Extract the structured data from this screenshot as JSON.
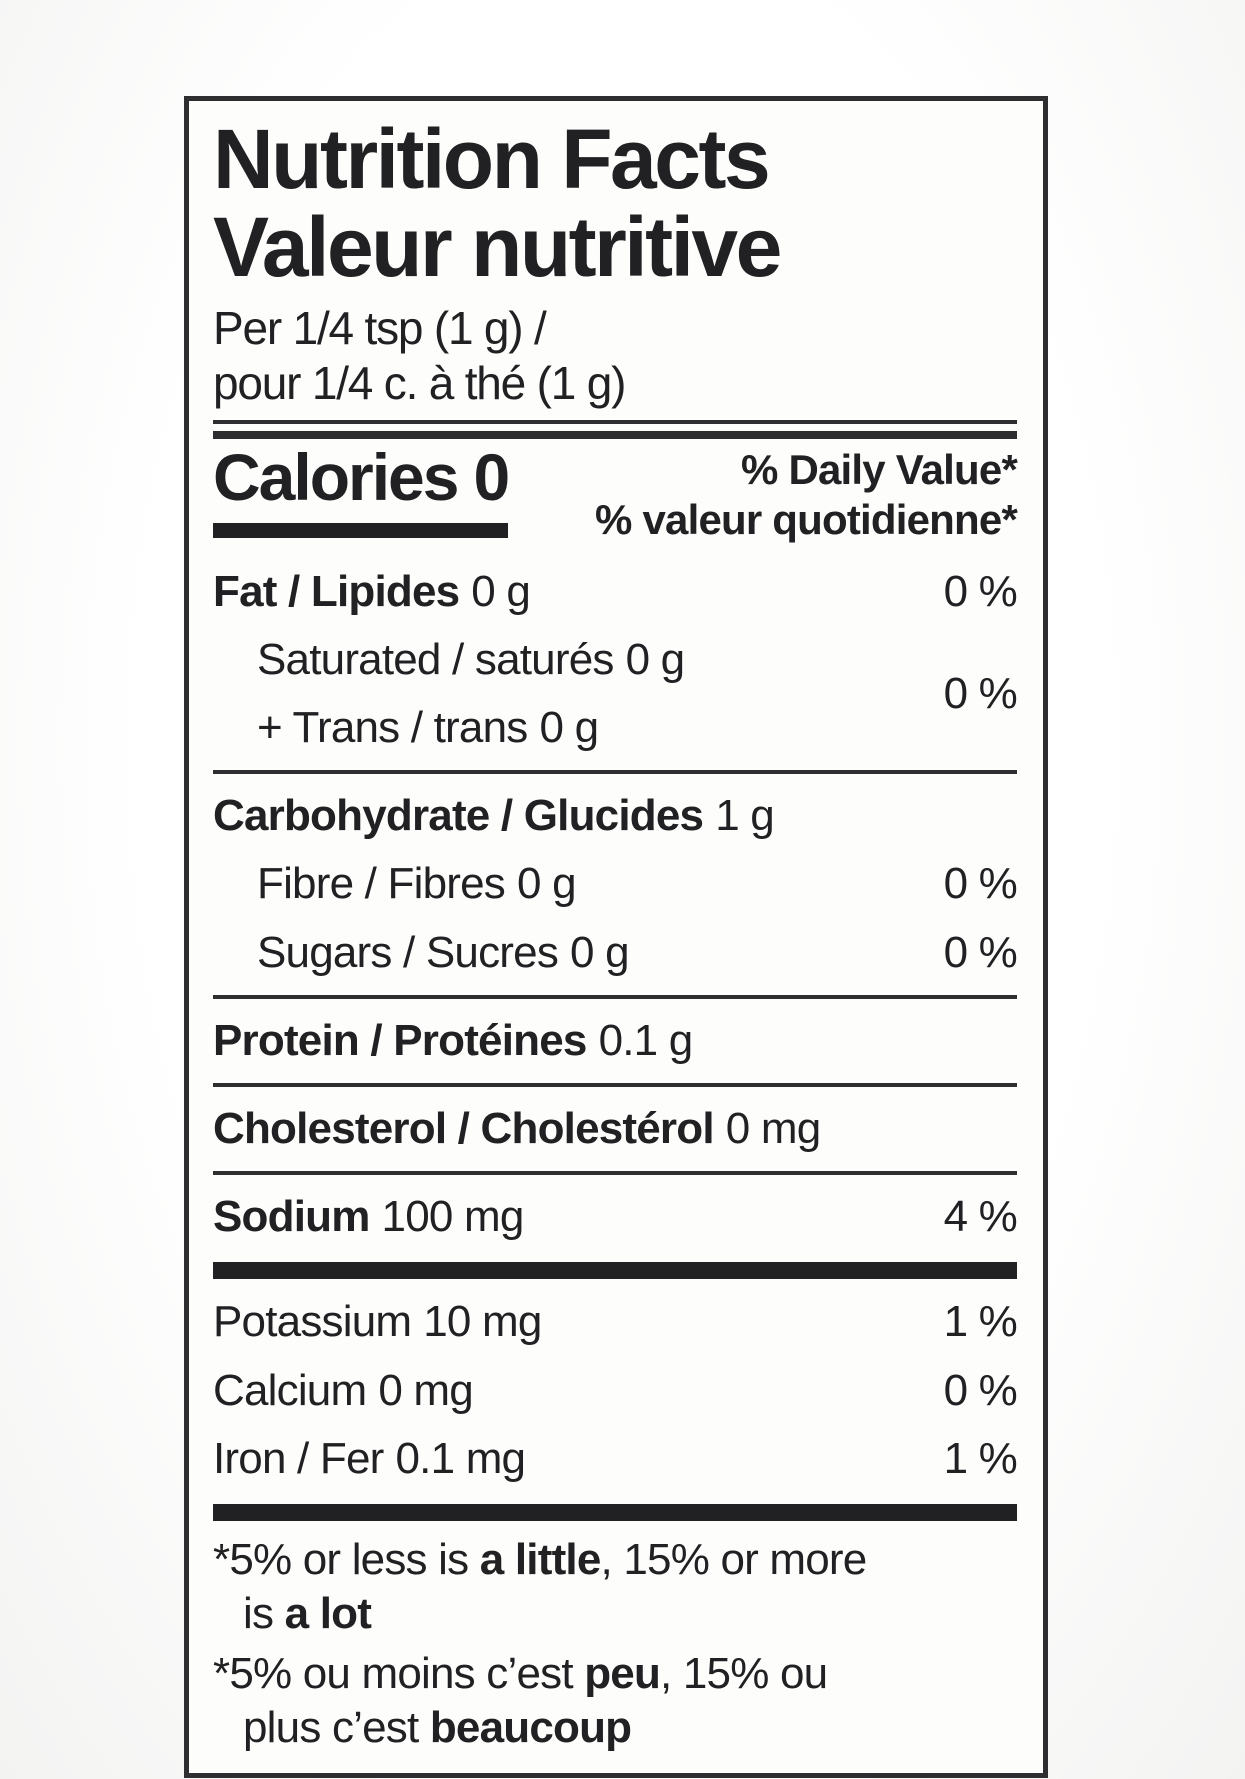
{
  "label": {
    "title_en": "Nutrition Facts",
    "title_fr": "Valeur nutritive",
    "serving_line1": "Per 1/4 tsp (1 g) /",
    "serving_line2": "pour 1/4 c. à thé (1 g)",
    "calories_label": "Calories",
    "calories_value": "0",
    "daily_value_en": "% Daily Value*",
    "daily_value_fr": "% valeur quotidienne*",
    "rows": [
      {
        "type": "row",
        "key": "fat",
        "name": "Fat / Lipides",
        "bold": true,
        "amount": "0 g",
        "dv": "0 %"
      },
      {
        "type": "group",
        "key": "saturated-trans",
        "indent": true,
        "dv": "0 %",
        "lines": [
          {
            "name": "Saturated / saturés",
            "amount": "0 g"
          },
          {
            "name": "+ Trans / trans",
            "amount": "0 g"
          }
        ]
      },
      {
        "type": "rule"
      },
      {
        "type": "row",
        "key": "carbohydrate",
        "name": "Carbohydrate / Glucides",
        "bold": true,
        "amount": "1 g"
      },
      {
        "type": "row",
        "key": "fibre",
        "name": "Fibre / Fibres",
        "indent": true,
        "amount": "0 g",
        "dv": "0 %"
      },
      {
        "type": "row",
        "key": "sugars",
        "name": "Sugars / Sucres",
        "indent": true,
        "amount": "0 g",
        "dv": "0 %"
      },
      {
        "type": "rule"
      },
      {
        "type": "row",
        "key": "protein",
        "name": "Protein / Protéines",
        "bold": true,
        "amount": "0.1 g"
      },
      {
        "type": "rule"
      },
      {
        "type": "row",
        "key": "cholesterol",
        "name": "Cholesterol / Cholestérol",
        "bold": true,
        "amount": "0 mg"
      },
      {
        "type": "rule"
      },
      {
        "type": "row",
        "key": "sodium",
        "name": "Sodium",
        "bold": true,
        "amount": "100 mg",
        "dv": "4 %"
      },
      {
        "type": "bar"
      },
      {
        "type": "row",
        "key": "potassium",
        "name": "Potassium",
        "amount": "10 mg",
        "dv": "1 %"
      },
      {
        "type": "row",
        "key": "calcium",
        "name": "Calcium",
        "amount": "0 mg",
        "dv": "0 %"
      },
      {
        "type": "row",
        "key": "iron",
        "name": "Iron / Fer",
        "amount": "0.1 mg",
        "dv": "1 %"
      },
      {
        "type": "bar"
      }
    ],
    "footnotes": [
      {
        "lang": "en",
        "lines": [
          [
            {
              "t": "*5% or less is "
            },
            {
              "t": "a little",
              "b": true
            },
            {
              "t": ", 15% or more"
            }
          ],
          [
            {
              "t": "is "
            },
            {
              "t": "a lot",
              "b": true
            }
          ]
        ]
      },
      {
        "lang": "fr",
        "lines": [
          [
            {
              "t": "*5% ou moins c’est "
            },
            {
              "t": "peu",
              "b": true
            },
            {
              "t": ", 15% ou"
            }
          ],
          [
            {
              "t": "plus c’est "
            },
            {
              "t": "beaucoup",
              "b": true
            }
          ]
        ]
      }
    ],
    "colors": {
      "text": "#212124",
      "rule": "#2e2e30",
      "label-bg": "#fdfdfc"
    }
  }
}
